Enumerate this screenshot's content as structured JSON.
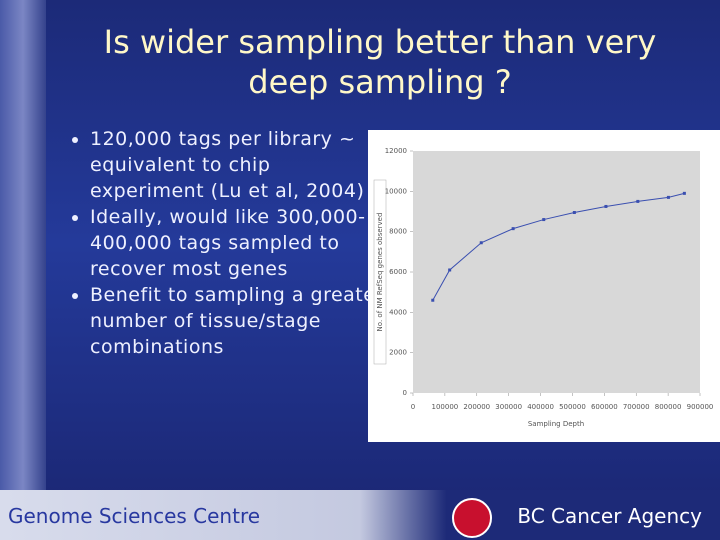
{
  "title": "Is wider sampling better than very deep sampling ?",
  "bullets": [
    "120,000 tags per library ~ equivalent to chip experiment (Lu et al, 2004)",
    "Ideally, would like 300,000-400,000 tags sampled to recover most genes",
    "Benefit to sampling a greater number of tissue/stage combinations"
  ],
  "footer": {
    "left": "Genome Sciences Centre",
    "right": "BC Cancer Agency"
  },
  "chart_data": {
    "type": "line",
    "x_label": "Sampling Depth",
    "y_label": "No. of NM RefSeq genes observed",
    "x": [
      62000,
      115000,
      214000,
      314000,
      410000,
      506000,
      605000,
      705000,
      801000,
      851000
    ],
    "series": [
      {
        "name": "genes",
        "color": "#3a4fb0",
        "values": [
          4600,
          6100,
          7450,
          8150,
          8600,
          8950,
          9250,
          9500,
          9700,
          9900
        ]
      }
    ],
    "xlim": [
      0,
      900000
    ],
    "xticks": [
      0,
      100000,
      200000,
      300000,
      400000,
      500000,
      600000,
      700000,
      800000,
      900000
    ],
    "ylim": [
      0,
      12000
    ],
    "yticks": [
      0,
      2000,
      4000,
      6000,
      8000,
      10000,
      12000
    ]
  }
}
